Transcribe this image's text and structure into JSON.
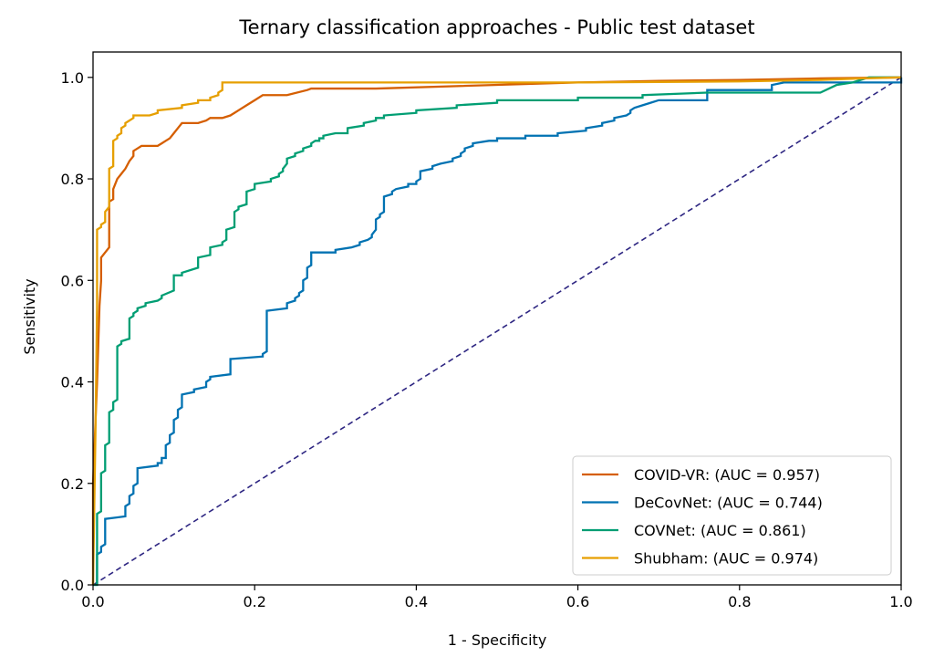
{
  "chart_data": {
    "type": "line",
    "title": "Ternary classification approaches - Public test dataset",
    "xlabel": "1 - Specificity",
    "ylabel": "Sensitivity",
    "xlim": [
      0.0,
      1.0
    ],
    "ylim": [
      0.0,
      1.05
    ],
    "xticks": [
      "0.0",
      "0.2",
      "0.4",
      "0.6",
      "0.8",
      "1.0"
    ],
    "yticks": [
      "0.0",
      "0.2",
      "0.4",
      "0.6",
      "0.8",
      "1.0"
    ],
    "grid": false,
    "legend_position": "lower-right",
    "diagonal": {
      "x": [
        0.0,
        1.0
      ],
      "y": [
        0.0,
        1.0
      ],
      "color": "#2e2682",
      "style": "dashed"
    },
    "series": [
      {
        "name": "COVID-VR: (AUC = 0.957)",
        "color": "#d55e00",
        "x": [
          0,
          0,
          0.005,
          0.008,
          0.01,
          0.01,
          0.015,
          0.02,
          0.02,
          0.025,
          0.025,
          0.03,
          0.035,
          0.04,
          0.045,
          0.05,
          0.05,
          0.055,
          0.06,
          0.065,
          0.07,
          0.08,
          0.085,
          0.09,
          0.095,
          0.1,
          0.105,
          0.11,
          0.115,
          0.12,
          0.125,
          0.13,
          0.14,
          0.145,
          0.15,
          0.155,
          0.16,
          0.17,
          0.175,
          0.18,
          0.19,
          0.2,
          0.21,
          0.215,
          0.24,
          0.265,
          0.27,
          0.3,
          0.35,
          0.6,
          0.7,
          0.8,
          0.9,
          1.0
        ],
        "y": [
          0,
          0.2,
          0.4,
          0.55,
          0.6,
          0.645,
          0.655,
          0.665,
          0.755,
          0.76,
          0.78,
          0.8,
          0.81,
          0.82,
          0.835,
          0.845,
          0.855,
          0.86,
          0.865,
          0.865,
          0.865,
          0.865,
          0.87,
          0.875,
          0.88,
          0.89,
          0.9,
          0.91,
          0.91,
          0.91,
          0.91,
          0.91,
          0.915,
          0.92,
          0.92,
          0.92,
          0.92,
          0.925,
          0.93,
          0.935,
          0.945,
          0.955,
          0.965,
          0.965,
          0.965,
          0.975,
          0.978,
          0.978,
          0.978,
          0.99,
          0.993,
          0.995,
          0.998,
          1.0
        ]
      },
      {
        "name": "DeCovNet: (AUC = 0.744)",
        "color": "#0072b2",
        "x": [
          0,
          0.005,
          0.005,
          0.01,
          0.01,
          0.015,
          0.015,
          0.04,
          0.04,
          0.045,
          0.045,
          0.05,
          0.05,
          0.055,
          0.055,
          0.08,
          0.08,
          0.085,
          0.085,
          0.09,
          0.09,
          0.095,
          0.095,
          0.1,
          0.1,
          0.105,
          0.105,
          0.11,
          0.11,
          0.125,
          0.125,
          0.14,
          0.14,
          0.145,
          0.145,
          0.17,
          0.17,
          0.21,
          0.21,
          0.215,
          0.215,
          0.24,
          0.24,
          0.25,
          0.25,
          0.255,
          0.255,
          0.26,
          0.26,
          0.265,
          0.265,
          0.27,
          0.27,
          0.3,
          0.3,
          0.32,
          0.32,
          0.33,
          0.33,
          0.34,
          0.34,
          0.345,
          0.345,
          0.35,
          0.35,
          0.355,
          0.355,
          0.36,
          0.36,
          0.37,
          0.37,
          0.375,
          0.375,
          0.39,
          0.39,
          0.4,
          0.4,
          0.405,
          0.405,
          0.42,
          0.42,
          0.43,
          0.43,
          0.445,
          0.445,
          0.455,
          0.455,
          0.46,
          0.46,
          0.47,
          0.47,
          0.49,
          0.49,
          0.5,
          0.5,
          0.535,
          0.535,
          0.575,
          0.575,
          0.61,
          0.61,
          0.63,
          0.63,
          0.645,
          0.645,
          0.66,
          0.66,
          0.665,
          0.665,
          0.67,
          0.67,
          0.68,
          0.68,
          0.69,
          0.69,
          0.7,
          0.7,
          0.76,
          0.76,
          0.84,
          0.84,
          0.855,
          0.855,
          0.95,
          1.0,
          1.0
        ],
        "y": [
          0,
          0,
          0.06,
          0.065,
          0.075,
          0.08,
          0.13,
          0.135,
          0.155,
          0.16,
          0.175,
          0.18,
          0.195,
          0.2,
          0.23,
          0.235,
          0.24,
          0.24,
          0.25,
          0.25,
          0.275,
          0.28,
          0.295,
          0.3,
          0.325,
          0.33,
          0.345,
          0.35,
          0.375,
          0.38,
          0.385,
          0.39,
          0.4,
          0.405,
          0.41,
          0.415,
          0.445,
          0.45,
          0.455,
          0.46,
          0.54,
          0.545,
          0.555,
          0.56,
          0.565,
          0.57,
          0.575,
          0.58,
          0.6,
          0.605,
          0.625,
          0.63,
          0.655,
          0.655,
          0.66,
          0.665,
          0.665,
          0.67,
          0.675,
          0.68,
          0.68,
          0.685,
          0.69,
          0.7,
          0.72,
          0.725,
          0.73,
          0.735,
          0.765,
          0.77,
          0.775,
          0.78,
          0.78,
          0.785,
          0.79,
          0.79,
          0.795,
          0.8,
          0.815,
          0.82,
          0.825,
          0.83,
          0.83,
          0.835,
          0.84,
          0.845,
          0.85,
          0.855,
          0.86,
          0.865,
          0.87,
          0.875,
          0.875,
          0.875,
          0.88,
          0.88,
          0.885,
          0.885,
          0.89,
          0.895,
          0.9,
          0.905,
          0.91,
          0.915,
          0.92,
          0.925,
          0.925,
          0.93,
          0.935,
          0.94,
          0.94,
          0.945,
          0.945,
          0.95,
          0.95,
          0.955,
          0.955,
          0.955,
          0.975,
          0.975,
          0.985,
          0.99,
          0.99,
          0.99,
          0.99,
          1.0
        ]
      },
      {
        "name": "COVNet: (AUC = 0.861)",
        "color": "#009e73",
        "x": [
          0,
          0.005,
          0.005,
          0.01,
          0.01,
          0.015,
          0.015,
          0.02,
          0.02,
          0.025,
          0.025,
          0.03,
          0.03,
          0.035,
          0.035,
          0.045,
          0.045,
          0.05,
          0.05,
          0.055,
          0.055,
          0.065,
          0.065,
          0.08,
          0.08,
          0.085,
          0.085,
          0.1,
          0.1,
          0.11,
          0.11,
          0.13,
          0.13,
          0.145,
          0.145,
          0.16,
          0.16,
          0.165,
          0.165,
          0.175,
          0.175,
          0.18,
          0.18,
          0.19,
          0.19,
          0.2,
          0.2,
          0.22,
          0.22,
          0.23,
          0.23,
          0.235,
          0.235,
          0.24,
          0.24,
          0.25,
          0.25,
          0.26,
          0.26,
          0.27,
          0.27,
          0.275,
          0.275,
          0.28,
          0.28,
          0.285,
          0.285,
          0.3,
          0.3,
          0.315,
          0.315,
          0.335,
          0.335,
          0.35,
          0.35,
          0.36,
          0.36,
          0.4,
          0.4,
          0.45,
          0.45,
          0.5,
          0.5,
          0.6,
          0.6,
          0.68,
          0.68,
          0.76,
          0.76,
          0.9,
          0.92,
          0.94,
          0.96,
          1.0
        ],
        "y": [
          0,
          0,
          0.14,
          0.145,
          0.22,
          0.225,
          0.275,
          0.28,
          0.34,
          0.345,
          0.36,
          0.365,
          0.47,
          0.475,
          0.48,
          0.485,
          0.525,
          0.53,
          0.535,
          0.54,
          0.545,
          0.55,
          0.555,
          0.56,
          0.56,
          0.565,
          0.57,
          0.58,
          0.61,
          0.61,
          0.615,
          0.625,
          0.645,
          0.65,
          0.665,
          0.67,
          0.675,
          0.68,
          0.7,
          0.705,
          0.735,
          0.74,
          0.745,
          0.75,
          0.775,
          0.78,
          0.79,
          0.795,
          0.8,
          0.805,
          0.81,
          0.815,
          0.82,
          0.83,
          0.84,
          0.845,
          0.85,
          0.855,
          0.86,
          0.865,
          0.87,
          0.875,
          0.875,
          0.875,
          0.88,
          0.88,
          0.885,
          0.89,
          0.89,
          0.89,
          0.9,
          0.905,
          0.91,
          0.915,
          0.92,
          0.92,
          0.925,
          0.93,
          0.935,
          0.94,
          0.945,
          0.95,
          0.955,
          0.955,
          0.96,
          0.96,
          0.965,
          0.97,
          0.97,
          0.97,
          0.985,
          0.99,
          1.0,
          1.0
        ]
      },
      {
        "name": "Shubham: (AUC = 0.974)",
        "color": "#e69f00",
        "x": [
          0,
          0.003,
          0.005,
          0.005,
          0.01,
          0.01,
          0.015,
          0.015,
          0.02,
          0.02,
          0.025,
          0.025,
          0.03,
          0.03,
          0.035,
          0.035,
          0.04,
          0.04,
          0.045,
          0.045,
          0.05,
          0.05,
          0.07,
          0.08,
          0.08,
          0.11,
          0.11,
          0.13,
          0.13,
          0.145,
          0.145,
          0.155,
          0.155,
          0.16,
          0.16,
          0.3,
          0.6,
          0.8,
          0.9,
          0.95,
          1.0
        ],
        "y": [
          0,
          0.3,
          0.55,
          0.7,
          0.705,
          0.71,
          0.715,
          0.735,
          0.745,
          0.82,
          0.825,
          0.875,
          0.88,
          0.885,
          0.89,
          0.9,
          0.905,
          0.91,
          0.915,
          0.915,
          0.92,
          0.925,
          0.925,
          0.93,
          0.935,
          0.94,
          0.945,
          0.95,
          0.955,
          0.955,
          0.96,
          0.965,
          0.97,
          0.975,
          0.99,
          0.99,
          0.99,
          0.992,
          0.995,
          0.998,
          1.0
        ]
      }
    ]
  }
}
